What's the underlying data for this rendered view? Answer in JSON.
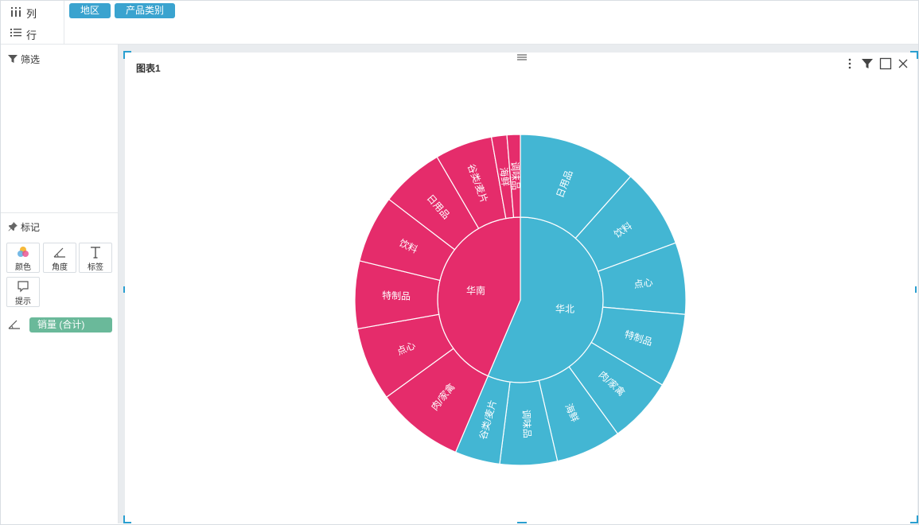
{
  "shelf": {
    "columns_label": "列",
    "rows_label": "行",
    "column_pills": [
      "地区",
      "产品类别"
    ]
  },
  "left_panel": {
    "filter_title": "筛选",
    "marks_title": "标记",
    "marks": {
      "color": "颜色",
      "angle": "角度",
      "label": "标签",
      "tooltip": "提示"
    },
    "measure_pill": "销量 (合计)"
  },
  "chart_card": {
    "title": "图表1",
    "tools": [
      "more-icon",
      "filter-icon",
      "maximize-icon",
      "close-icon"
    ]
  },
  "colors": {
    "huanan": "#e52c6b",
    "huabei": "#43b6d3",
    "pill_dimension": "#3aa3cf",
    "pill_measure": "#6ab99a",
    "selection": "#2a9fd0"
  },
  "chart_data": {
    "type": "sunburst",
    "title": "",
    "series": [
      {
        "name": "华北",
        "value": 56.4,
        "children": [
          {
            "name": "日用品",
            "value": 11.6
          },
          {
            "name": "饮料",
            "value": 7.8
          },
          {
            "name": "点心",
            "value": 7.0
          },
          {
            "name": "特制品",
            "value": 7.2
          },
          {
            "name": "肉/家禽",
            "value": 6.4
          },
          {
            "name": "海鲜",
            "value": 6.4
          },
          {
            "name": "调味品",
            "value": 5.6
          },
          {
            "name": "谷类/麦片",
            "value": 4.4
          }
        ]
      },
      {
        "name": "华南",
        "value": 43.6,
        "children": [
          {
            "name": "肉/家禽",
            "value": 8.6
          },
          {
            "name": "点心",
            "value": 7.2
          },
          {
            "name": "特制品",
            "value": 6.6
          },
          {
            "name": "饮料",
            "value": 6.6
          },
          {
            "name": "日用品",
            "value": 6.2
          },
          {
            "name": "谷类/麦片",
            "value": 5.6
          },
          {
            "name": "海鲜",
            "value": 1.5
          },
          {
            "name": "调味品",
            "value": 1.3
          }
        ]
      }
    ]
  }
}
